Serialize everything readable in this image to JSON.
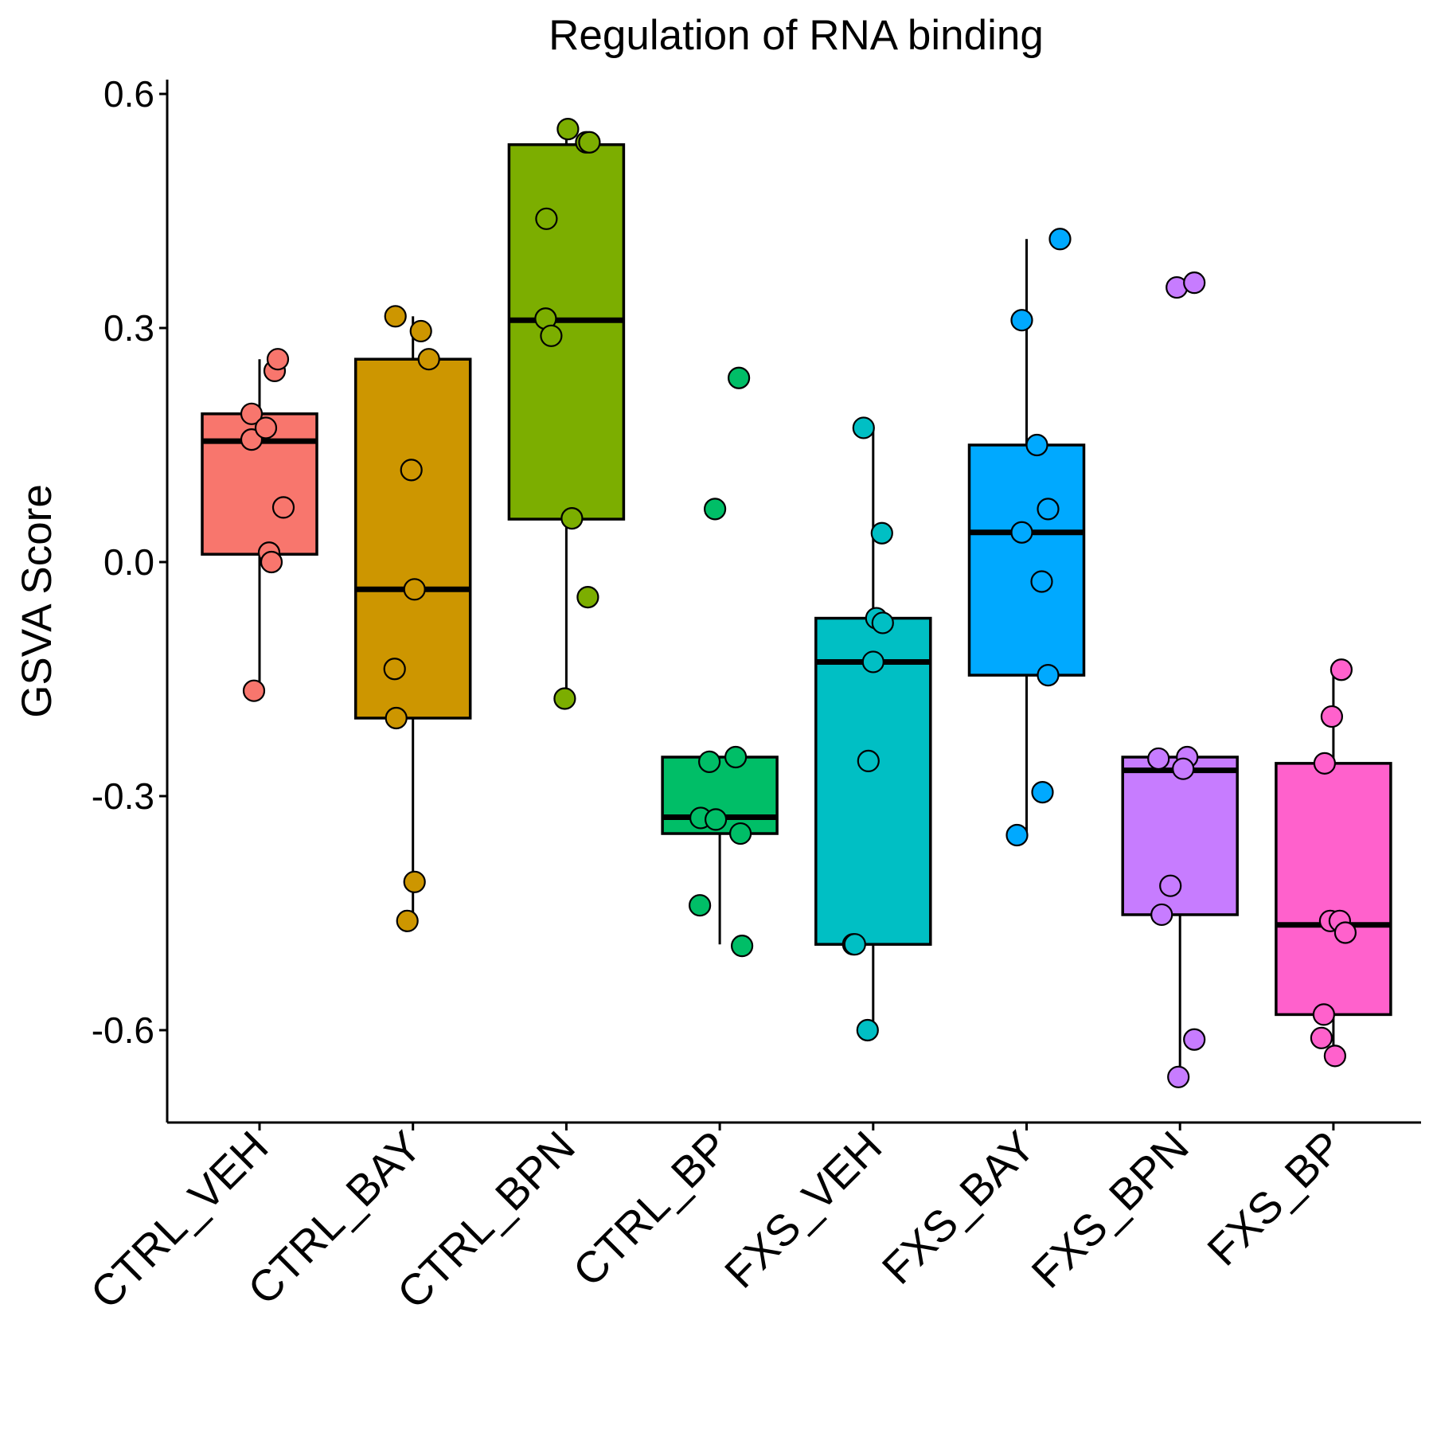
{
  "chart_data": {
    "type": "box",
    "title": "Regulation of RNA binding",
    "ylabel": "GSVA Score",
    "xlabel": "",
    "ylim": [
      -0.72,
      0.62
    ],
    "yticks": [
      0.6,
      0.3,
      0.0,
      -0.3,
      -0.6
    ],
    "ytick_labels": [
      "0.6",
      "0.3",
      "0.0",
      "-0.3",
      "-0.6"
    ],
    "grid": false,
    "legend": "none",
    "categories": [
      "CTRL_VEH",
      "CTRL_BAY",
      "CTRL_BPN",
      "CTRL_BP",
      "FXS_VEH",
      "FXS_BAY",
      "FXS_BPN",
      "FXS_BP"
    ],
    "groups": [
      {
        "name": "CTRL_VEH",
        "color": "#F8766D",
        "box": {
          "q1": 0.01,
          "median": 0.155,
          "q3": 0.19,
          "whisker_low": -0.165,
          "whisker_high": 0.26
        },
        "points": [
          [
            0.19,
            0.245
          ],
          [
            0.23,
            0.26
          ],
          [
            -0.1,
            0.19
          ],
          [
            -0.1,
            0.157
          ],
          [
            0.08,
            0.172
          ],
          [
            0.3,
            0.07
          ],
          [
            0.12,
            0.012
          ],
          [
            0.15,
            0.0
          ],
          [
            -0.07,
            -0.165
          ]
        ]
      },
      {
        "name": "CTRL_BAY",
        "color": "#CD9600",
        "box": {
          "q1": -0.2,
          "median": -0.035,
          "q3": 0.26,
          "whisker_low": -0.46,
          "whisker_high": 0.315
        },
        "points": [
          [
            -0.22,
            0.315
          ],
          [
            0.1,
            0.296
          ],
          [
            0.2,
            0.26
          ],
          [
            -0.02,
            0.118
          ],
          [
            0.02,
            -0.035
          ],
          [
            -0.23,
            -0.137
          ],
          [
            -0.21,
            -0.2
          ],
          [
            0.02,
            -0.41
          ],
          [
            -0.07,
            -0.46
          ]
        ]
      },
      {
        "name": "CTRL_BPN",
        "color": "#7CAE00",
        "box": {
          "q1": 0.055,
          "median": 0.31,
          "q3": 0.535,
          "whisker_low": -0.175,
          "whisker_high": 0.555
        },
        "points": [
          [
            0.02,
            0.555
          ],
          [
            0.25,
            0.538
          ],
          [
            0.29,
            0.538
          ],
          [
            -0.25,
            0.44
          ],
          [
            -0.26,
            0.312
          ],
          [
            -0.19,
            0.29
          ],
          [
            0.07,
            0.056
          ],
          [
            0.27,
            -0.045
          ],
          [
            -0.02,
            -0.175
          ]
        ]
      },
      {
        "name": "CTRL_BP",
        "color": "#00BE67",
        "box": {
          "q1": -0.348,
          "median": -0.327,
          "q3": -0.25,
          "whisker_low": -0.49,
          "whisker_high": -0.25
        },
        "points": [
          [
            0.24,
            0.236
          ],
          [
            -0.06,
            0.068
          ],
          [
            -0.13,
            -0.256
          ],
          [
            0.2,
            -0.25
          ],
          [
            -0.24,
            -0.328
          ],
          [
            -0.05,
            -0.33
          ],
          [
            0.26,
            -0.348
          ],
          [
            -0.25,
            -0.44
          ],
          [
            0.28,
            -0.492
          ]
        ]
      },
      {
        "name": "FXS_VEH",
        "color": "#00BFC4",
        "box": {
          "q1": -0.49,
          "median": -0.128,
          "q3": -0.072,
          "whisker_low": -0.6,
          "whisker_high": 0.172
        },
        "points": [
          [
            -0.12,
            0.172
          ],
          [
            0.11,
            0.037
          ],
          [
            0.04,
            -0.072
          ],
          [
            0.12,
            -0.078
          ],
          [
            0.0,
            -0.128
          ],
          [
            -0.06,
            -0.255
          ],
          [
            -0.25,
            -0.49
          ],
          [
            -0.23,
            -0.49
          ],
          [
            -0.07,
            -0.6
          ]
        ]
      },
      {
        "name": "FXS_BAY",
        "color": "#00A9FF",
        "box": {
          "q1": -0.145,
          "median": 0.038,
          "q3": 0.15,
          "whisker_low": -0.35,
          "whisker_high": 0.414
        },
        "points": [
          [
            0.42,
            0.414
          ],
          [
            -0.06,
            0.31
          ],
          [
            0.13,
            0.15
          ],
          [
            0.27,
            0.068
          ],
          [
            -0.06,
            0.038
          ],
          [
            0.19,
            -0.025
          ],
          [
            0.27,
            -0.145
          ],
          [
            0.2,
            -0.295
          ],
          [
            -0.12,
            -0.35
          ]
        ]
      },
      {
        "name": "FXS_BPN",
        "color": "#C77CFF",
        "box": {
          "q1": -0.452,
          "median": -0.267,
          "q3": -0.25,
          "whisker_low": -0.66,
          "whisker_high": -0.25
        },
        "points": [
          [
            -0.04,
            0.352
          ],
          [
            0.18,
            0.358
          ],
          [
            -0.27,
            -0.252
          ],
          [
            0.09,
            -0.25
          ],
          [
            0.04,
            -0.265
          ],
          [
            -0.12,
            -0.415
          ],
          [
            -0.23,
            -0.452
          ],
          [
            0.18,
            -0.612
          ],
          [
            -0.02,
            -0.66
          ]
        ]
      },
      {
        "name": "FXS_BP",
        "color": "#FF61CC",
        "box": {
          "q1": -0.58,
          "median": -0.465,
          "q3": -0.258,
          "whisker_low": -0.633,
          "whisker_high": -0.138
        },
        "points": [
          [
            0.1,
            -0.138
          ],
          [
            -0.02,
            -0.198
          ],
          [
            -0.11,
            -0.258
          ],
          [
            -0.04,
            -0.46
          ],
          [
            0.08,
            -0.46
          ],
          [
            0.15,
            -0.475
          ],
          [
            -0.12,
            -0.58
          ],
          [
            -0.15,
            -0.61
          ],
          [
            0.02,
            -0.633
          ]
        ]
      }
    ]
  }
}
